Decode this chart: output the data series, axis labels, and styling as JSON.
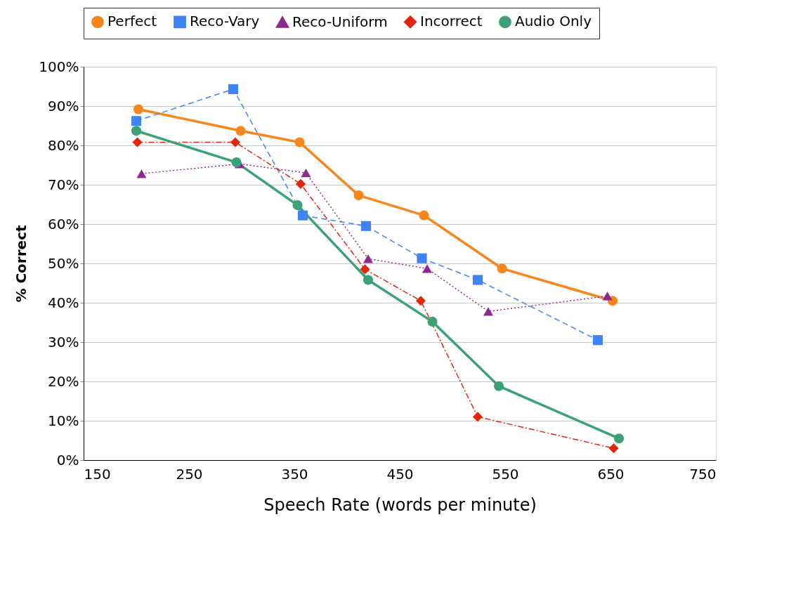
{
  "chart_data": {
    "type": "line",
    "xlabel": "Speech Rate (words per minute)",
    "ylabel": "% Correct",
    "xlim": [
      150,
      750
    ],
    "xticks": [
      150,
      250,
      350,
      450,
      550,
      650,
      750
    ],
    "ylim": [
      0,
      100
    ],
    "yticks": [
      {
        "value": 0,
        "label": "0%"
      },
      {
        "value": 10,
        "label": "10%"
      },
      {
        "value": 20,
        "label": "20%"
      },
      {
        "value": 30,
        "label": "30%"
      },
      {
        "value": 40,
        "label": "40%"
      },
      {
        "value": 50,
        "label": "50%"
      },
      {
        "value": 60,
        "label": "60%"
      },
      {
        "value": 70,
        "label": "70%"
      },
      {
        "value": 80,
        "label": "80%"
      },
      {
        "value": 90,
        "label": "90%"
      },
      {
        "value": 100,
        "label": "100%"
      }
    ],
    "grid": "y",
    "legend": "top",
    "series": [
      {
        "name": "Perfect",
        "color": "#f7861c",
        "line_style": "solid",
        "marker": "circle",
        "x": [
          202,
          299,
          355,
          411,
          473,
          547,
          652
        ],
        "values": [
          89.2,
          83.7,
          80.8,
          67.3,
          62.2,
          48.7,
          40.5
        ]
      },
      {
        "name": "Reco-Vary",
        "color": "#3f84f4",
        "line_style": "dashed",
        "marker": "square",
        "x": [
          200,
          292,
          358,
          418,
          471,
          524,
          638
        ],
        "values": [
          86.2,
          94.3,
          62.2,
          59.5,
          51.3,
          45.8,
          30.5
        ]
      },
      {
        "name": "Reco-Uniform",
        "color": "#8e2a8e",
        "line_style": "dotted",
        "marker": "triangle",
        "x": [
          205,
          298,
          361,
          420,
          476,
          534,
          647
        ],
        "values": [
          72.8,
          75.3,
          73,
          51.2,
          48.7,
          37.8,
          41.7
        ]
      },
      {
        "name": "Incorrect",
        "color": "#e2260e",
        "line_style": "dashdot",
        "marker": "diamond",
        "x": [
          201,
          294,
          356,
          417,
          470,
          524,
          653
        ],
        "values": [
          80.8,
          80.8,
          70.2,
          48.5,
          40.5,
          11,
          3
        ]
      },
      {
        "name": "Audio Only",
        "color": "#3aa275",
        "line_style": "solid",
        "marker": "circle",
        "x": [
          200,
          295,
          353,
          420,
          481,
          544,
          658
        ],
        "values": [
          83.7,
          75.7,
          64.8,
          45.8,
          35.2,
          18.8,
          5.5
        ]
      }
    ]
  }
}
